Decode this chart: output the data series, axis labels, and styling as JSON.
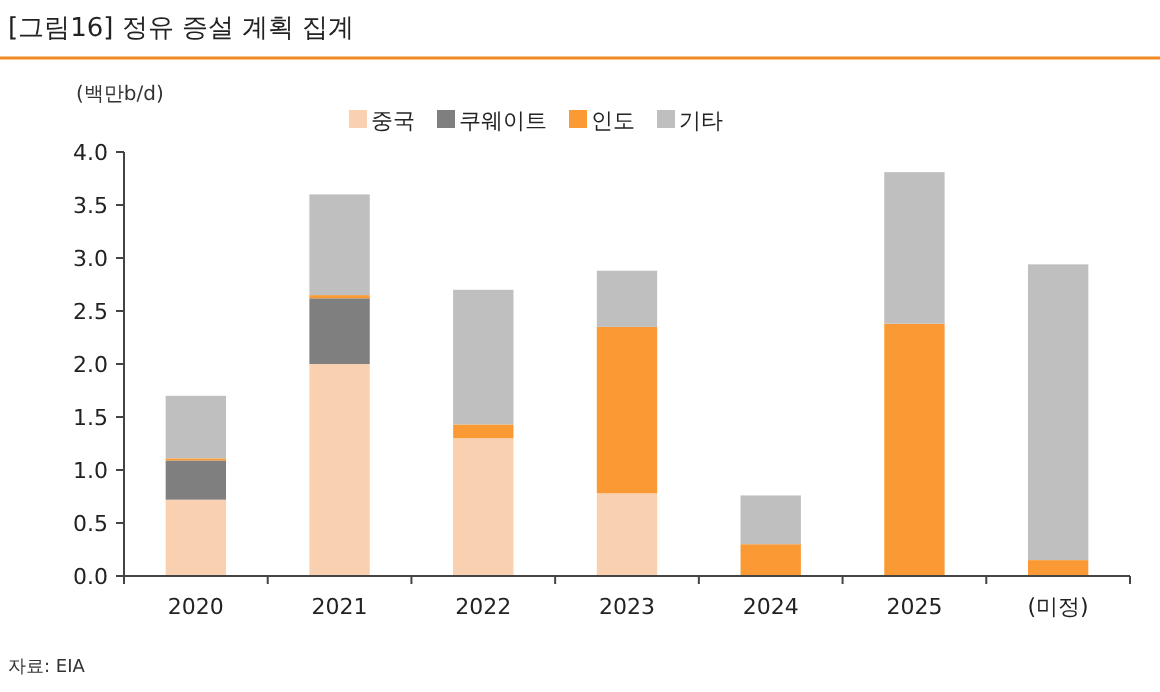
{
  "chart_data": {
    "type": "bar",
    "title": "[그림16]  정유 증설 계획 집계",
    "ylabel": "(백만b/d)",
    "categories": [
      "2020",
      "2021",
      "2022",
      "2023",
      "2024",
      "2025",
      "(미정)"
    ],
    "stacked": true,
    "legend": "top",
    "grid": false,
    "ylim": [
      0,
      4.0
    ],
    "yticks": [
      {
        "value": 0,
        "label": "0.0"
      },
      {
        "value": 0.5,
        "label": "0.5"
      },
      {
        "value": 1,
        "label": "1.0"
      },
      {
        "value": 1.5,
        "label": "1.5"
      },
      {
        "value": 2,
        "label": "2.0"
      },
      {
        "value": 2.5,
        "label": "2.5"
      },
      {
        "value": 3,
        "label": "3.0"
      },
      {
        "value": 3.5,
        "label": "3.5"
      },
      {
        "value": 4,
        "label": "4.0"
      }
    ],
    "series": [
      {
        "name": "중국",
        "color": "#f9d0b0",
        "values": [
          0.72,
          2.0,
          1.3,
          0.78,
          0,
          0,
          0
        ]
      },
      {
        "name": "쿠웨이트",
        "color": "#7f7f7f",
        "values": [
          0.37,
          0.62,
          0,
          0,
          0,
          0,
          0
        ]
      },
      {
        "name": "인도",
        "color": "#fb9a34",
        "values": [
          0.02,
          0.03,
          0.13,
          1.57,
          0.3,
          2.38,
          0.15
        ]
      },
      {
        "name": "기타",
        "color": "#bfbfbf",
        "values": [
          0.59,
          0.95,
          1.27,
          0.53,
          0.46,
          1.43,
          2.79
        ]
      }
    ],
    "annotations": [
      "자료: EIA"
    ]
  }
}
